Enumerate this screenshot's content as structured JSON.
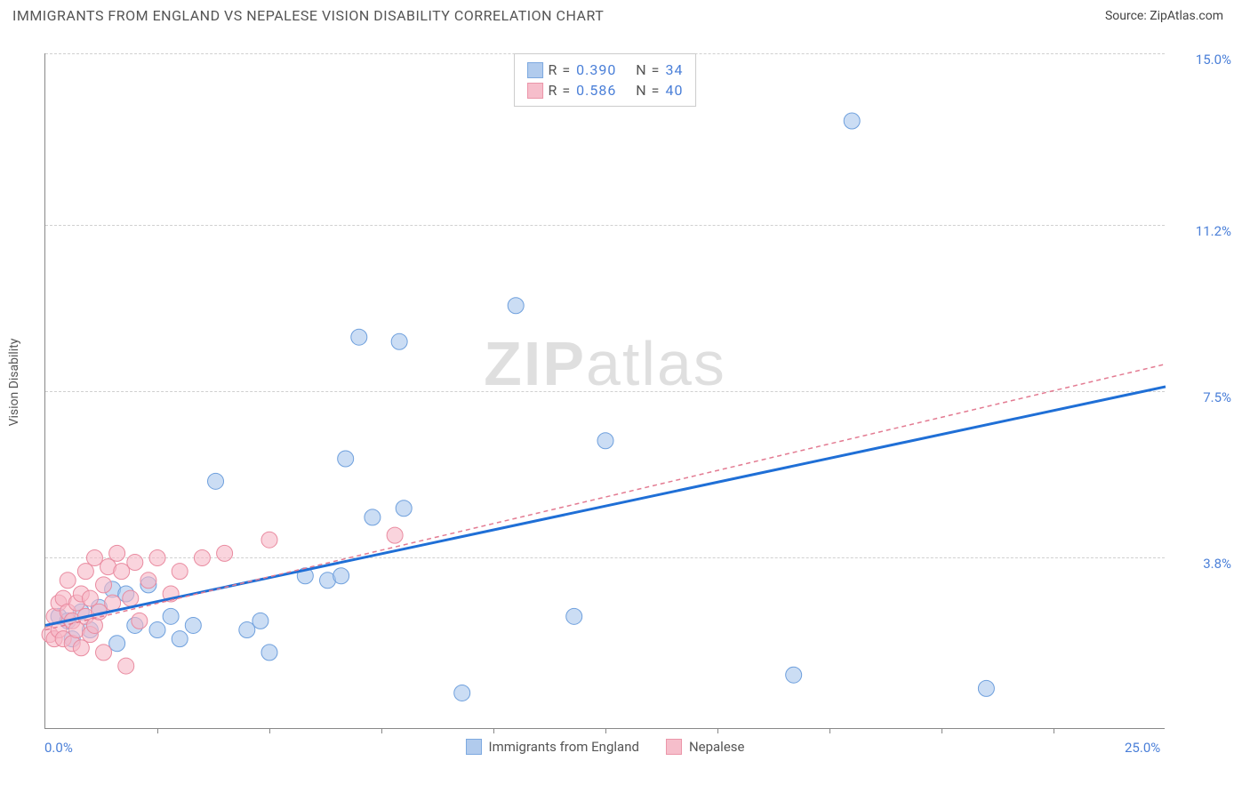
{
  "header": {
    "title": "IMMIGRANTS FROM ENGLAND VS NEPALESE VISION DISABILITY CORRELATION CHART",
    "source_prefix": "Source: ",
    "source": "ZipAtlas.com"
  },
  "chart": {
    "type": "scatter",
    "ylabel": "Vision Disability",
    "xlim": [
      0,
      25
    ],
    "ylim": [
      0,
      15
    ],
    "xtick_positions": [
      2.5,
      5,
      7.5,
      10,
      12.5,
      15,
      17.5,
      20,
      22.5
    ],
    "x_axis_labels": [
      {
        "pos": 0,
        "text": "0.0%"
      },
      {
        "pos": 25,
        "text": "25.0%"
      }
    ],
    "y_axis_labels": [
      {
        "pos": 3.8,
        "text": "3.8%"
      },
      {
        "pos": 7.5,
        "text": "7.5%"
      },
      {
        "pos": 11.2,
        "text": "11.2%"
      },
      {
        "pos": 15.0,
        "text": "15.0%"
      }
    ],
    "gridlines_y": [
      3.8,
      7.5,
      11.2,
      15.0
    ],
    "background_color": "#ffffff",
    "grid_color": "#d0d0d0",
    "axis_color": "#888888",
    "label_color": "#4a7fd8",
    "marker_radius": 9,
    "marker_stroke_width": 1,
    "series": [
      {
        "id": "england",
        "label": "Immigrants from England",
        "fill": "#a9c6ec",
        "stroke": "#6fa0dd",
        "fill_opacity": 0.6,
        "r_value": "0.390",
        "n_value": "34",
        "regression": {
          "x1": 0,
          "y1": 2.3,
          "x2": 25,
          "y2": 7.6,
          "stroke": "#1f6fd6",
          "width": 3,
          "dash": "none"
        },
        "points": [
          [
            0.3,
            2.5
          ],
          [
            0.5,
            2.4
          ],
          [
            0.6,
            2.0
          ],
          [
            0.8,
            2.6
          ],
          [
            1.0,
            2.2
          ],
          [
            1.2,
            2.7
          ],
          [
            1.5,
            3.1
          ],
          [
            1.6,
            1.9
          ],
          [
            1.8,
            3.0
          ],
          [
            2.0,
            2.3
          ],
          [
            2.3,
            3.2
          ],
          [
            2.5,
            2.2
          ],
          [
            2.8,
            2.5
          ],
          [
            3.0,
            2.0
          ],
          [
            3.3,
            2.3
          ],
          [
            3.8,
            5.5
          ],
          [
            4.5,
            2.2
          ],
          [
            4.8,
            2.4
          ],
          [
            5.0,
            1.7
          ],
          [
            5.8,
            3.4
          ],
          [
            6.3,
            3.3
          ],
          [
            6.6,
            3.4
          ],
          [
            6.7,
            6.0
          ],
          [
            7.0,
            8.7
          ],
          [
            7.3,
            4.7
          ],
          [
            7.9,
            8.6
          ],
          [
            8.0,
            4.9
          ],
          [
            9.3,
            0.8
          ],
          [
            10.5,
            9.4
          ],
          [
            11.8,
            2.5
          ],
          [
            12.5,
            6.4
          ],
          [
            16.7,
            1.2
          ],
          [
            18.0,
            13.5
          ],
          [
            21.0,
            0.9
          ]
        ]
      },
      {
        "id": "nepalese",
        "label": "Nepalese",
        "fill": "#f6b8c6",
        "stroke": "#e98ba0",
        "fill_opacity": 0.6,
        "r_value": "0.586",
        "n_value": "40",
        "regression": {
          "x1": 0,
          "y1": 2.2,
          "x2": 25,
          "y2": 8.1,
          "stroke": "#e37b92",
          "width": 1.5,
          "dash": "5,4"
        },
        "points": [
          [
            0.1,
            2.1
          ],
          [
            0.2,
            2.5
          ],
          [
            0.2,
            2.0
          ],
          [
            0.3,
            2.8
          ],
          [
            0.3,
            2.2
          ],
          [
            0.4,
            2.9
          ],
          [
            0.4,
            2.0
          ],
          [
            0.5,
            2.6
          ],
          [
            0.5,
            3.3
          ],
          [
            0.6,
            1.9
          ],
          [
            0.6,
            2.4
          ],
          [
            0.7,
            2.8
          ],
          [
            0.7,
            2.2
          ],
          [
            0.8,
            3.0
          ],
          [
            0.8,
            1.8
          ],
          [
            0.9,
            2.5
          ],
          [
            0.9,
            3.5
          ],
          [
            1.0,
            2.1
          ],
          [
            1.0,
            2.9
          ],
          [
            1.1,
            3.8
          ],
          [
            1.1,
            2.3
          ],
          [
            1.2,
            2.6
          ],
          [
            1.3,
            3.2
          ],
          [
            1.3,
            1.7
          ],
          [
            1.4,
            3.6
          ],
          [
            1.5,
            2.8
          ],
          [
            1.6,
            3.9
          ],
          [
            1.7,
            3.5
          ],
          [
            1.8,
            1.4
          ],
          [
            1.9,
            2.9
          ],
          [
            2.0,
            3.7
          ],
          [
            2.1,
            2.4
          ],
          [
            2.3,
            3.3
          ],
          [
            2.5,
            3.8
          ],
          [
            2.8,
            3.0
          ],
          [
            3.0,
            3.5
          ],
          [
            3.5,
            3.8
          ],
          [
            4.0,
            3.9
          ],
          [
            5.0,
            4.2
          ],
          [
            7.8,
            4.3
          ]
        ]
      }
    ],
    "legend_top": {
      "r_label": "R =",
      "n_label": "N ="
    },
    "watermark": {
      "zip": "ZIP",
      "atlas": "atlas"
    }
  }
}
